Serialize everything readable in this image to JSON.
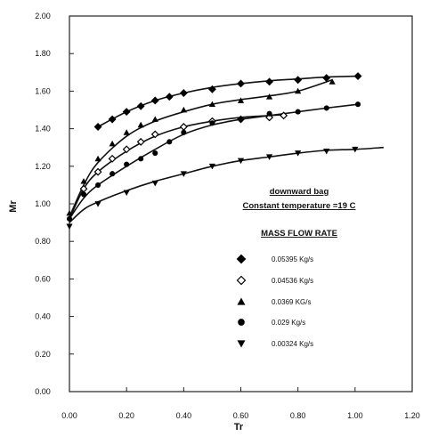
{
  "chart_data": {
    "type": "scatter",
    "xlabel": "Tr",
    "ylabel": "Mr",
    "xlim": [
      0,
      1.2
    ],
    "ylim": [
      0,
      2.0
    ],
    "x_ticks": [
      "0.00",
      "0.20",
      "0.40",
      "0.60",
      "0.80",
      "1.00",
      "1.20"
    ],
    "y_ticks": [
      "0.00",
      "0.20",
      "0.40",
      "0.60",
      "0.80",
      "1.00",
      "1.20",
      "1.40",
      "1.60",
      "1.80",
      "2.00"
    ],
    "annotations": [
      "downward bag",
      "Constant temperature =19 C",
      "MASS FLOW RATE"
    ],
    "legend_position": "center-right",
    "series": [
      {
        "name": "0.05395 Kg/s",
        "marker": "diamond-filled",
        "x": [
          0.1,
          0.15,
          0.2,
          0.25,
          0.3,
          0.35,
          0.4,
          0.5,
          0.6,
          0.7,
          0.8,
          0.9,
          1.01
        ],
        "y": [
          1.41,
          1.45,
          1.49,
          1.52,
          1.55,
          1.57,
          1.59,
          1.61,
          1.64,
          1.65,
          1.66,
          1.67,
          1.68
        ],
        "fit": [
          [
            0.1,
            1.41
          ],
          [
            0.2,
            1.49
          ],
          [
            0.3,
            1.55
          ],
          [
            0.4,
            1.59
          ],
          [
            0.5,
            1.62
          ],
          [
            0.6,
            1.64
          ],
          [
            0.7,
            1.655
          ],
          [
            0.8,
            1.665
          ],
          [
            0.9,
            1.675
          ],
          [
            1.01,
            1.68
          ]
        ]
      },
      {
        "name": "0.04536 Kg/s",
        "marker": "diamond-open",
        "x": [
          0.05,
          0.1,
          0.15,
          0.2,
          0.25,
          0.3,
          0.4,
          0.5,
          0.6,
          0.7,
          0.75
        ],
        "y": [
          1.08,
          1.17,
          1.24,
          1.29,
          1.33,
          1.37,
          1.41,
          1.44,
          1.45,
          1.46,
          1.47
        ],
        "fit": [
          [
            0.0,
            0.92
          ],
          [
            0.05,
            1.08
          ],
          [
            0.1,
            1.17
          ],
          [
            0.2,
            1.28
          ],
          [
            0.3,
            1.36
          ],
          [
            0.4,
            1.41
          ],
          [
            0.5,
            1.44
          ],
          [
            0.6,
            1.46
          ],
          [
            0.7,
            1.47
          ],
          [
            0.75,
            1.475
          ]
        ]
      },
      {
        "name": "0.0369 KG/s",
        "marker": "triangle-up",
        "x": [
          0.0,
          0.05,
          0.1,
          0.15,
          0.2,
          0.25,
          0.3,
          0.4,
          0.5,
          0.6,
          0.7,
          0.8,
          0.92
        ],
        "y": [
          0.95,
          1.12,
          1.24,
          1.32,
          1.38,
          1.42,
          1.45,
          1.5,
          1.53,
          1.55,
          1.57,
          1.6,
          1.65
        ],
        "fit": [
          [
            0.0,
            0.93
          ],
          [
            0.05,
            1.1
          ],
          [
            0.1,
            1.22
          ],
          [
            0.2,
            1.36
          ],
          [
            0.3,
            1.44
          ],
          [
            0.4,
            1.49
          ],
          [
            0.5,
            1.53
          ],
          [
            0.6,
            1.555
          ],
          [
            0.7,
            1.575
          ],
          [
            0.8,
            1.6
          ],
          [
            0.92,
            1.66
          ]
        ]
      },
      {
        "name": "0.029 Kg/s",
        "marker": "circle-filled",
        "x": [
          0.0,
          0.05,
          0.1,
          0.15,
          0.2,
          0.25,
          0.3,
          0.35,
          0.4,
          0.5,
          0.6,
          0.7,
          0.8,
          0.9,
          1.01
        ],
        "y": [
          0.92,
          1.05,
          1.1,
          1.16,
          1.21,
          1.24,
          1.27,
          1.33,
          1.38,
          1.43,
          1.45,
          1.48,
          1.49,
          1.51,
          1.53
        ],
        "fit": [
          [
            0.0,
            0.92
          ],
          [
            0.05,
            1.03
          ],
          [
            0.1,
            1.1
          ],
          [
            0.2,
            1.2
          ],
          [
            0.3,
            1.29
          ],
          [
            0.4,
            1.37
          ],
          [
            0.5,
            1.42
          ],
          [
            0.6,
            1.45
          ],
          [
            0.7,
            1.47
          ],
          [
            0.8,
            1.49
          ],
          [
            0.9,
            1.51
          ],
          [
            1.01,
            1.53
          ]
        ]
      },
      {
        "name": "0.00324 Kg/s",
        "marker": "triangle-down",
        "x": [
          0.0,
          0.1,
          0.2,
          0.3,
          0.4,
          0.5,
          0.6,
          0.7,
          0.8,
          0.9,
          1.0
        ],
        "y": [
          0.88,
          1.0,
          1.06,
          1.11,
          1.16,
          1.2,
          1.23,
          1.25,
          1.27,
          1.28,
          1.29
        ],
        "fit": [
          [
            0.0,
            0.9
          ],
          [
            0.05,
            0.97
          ],
          [
            0.1,
            1.01
          ],
          [
            0.2,
            1.07
          ],
          [
            0.3,
            1.12
          ],
          [
            0.4,
            1.16
          ],
          [
            0.5,
            1.2
          ],
          [
            0.6,
            1.23
          ],
          [
            0.7,
            1.25
          ],
          [
            0.8,
            1.27
          ],
          [
            0.9,
            1.285
          ],
          [
            1.0,
            1.29
          ],
          [
            1.1,
            1.3
          ]
        ]
      }
    ]
  }
}
